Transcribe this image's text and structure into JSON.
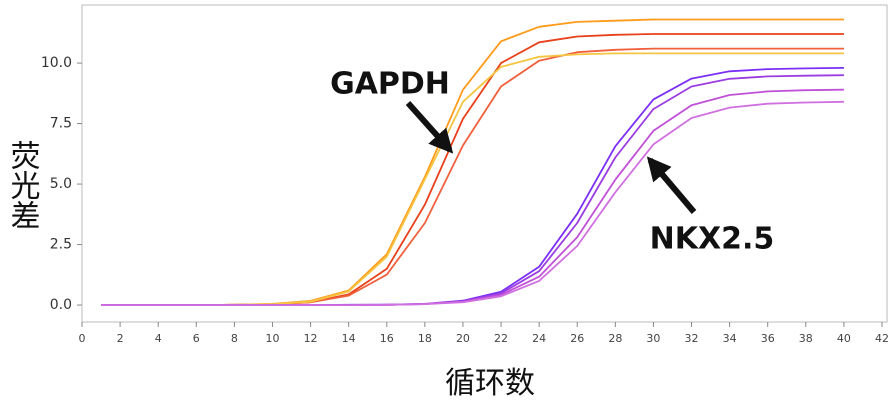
{
  "chart_data": {
    "type": "line",
    "x": [
      1,
      2,
      4,
      6,
      8,
      10,
      12,
      14,
      16,
      18,
      20,
      22,
      24,
      26,
      28,
      30,
      32,
      34,
      36,
      38,
      40
    ],
    "series": [
      {
        "color": "#ff9a1a",
        "values": [
          0,
          0,
          0,
          0,
          0.01,
          0.05,
          0.17,
          0.6,
          2.1,
          5.3,
          8.9,
          10.9,
          11.5,
          11.7,
          11.75,
          11.8,
          11.8,
          11.8,
          11.8,
          11.8,
          11.8
        ]
      },
      {
        "color": "#e8401a",
        "values": [
          0,
          0,
          0,
          0,
          0.01,
          0.03,
          0.12,
          0.44,
          1.5,
          4.15,
          7.7,
          10.0,
          10.86,
          11.1,
          11.17,
          11.2,
          11.2,
          11.2,
          11.2,
          11.2,
          11.2
        ]
      },
      {
        "color": "#f0603c",
        "values": [
          0,
          0,
          0,
          0,
          0.01,
          0.03,
          0.12,
          0.39,
          1.26,
          3.39,
          6.6,
          9.03,
          10.1,
          10.45,
          10.55,
          10.6,
          10.6,
          10.6,
          10.6,
          10.6,
          10.6
        ]
      },
      {
        "color": "#f5c542",
        "values": [
          0,
          0,
          0,
          0,
          0.01,
          0.04,
          0.14,
          0.56,
          2.0,
          5.2,
          8.4,
          9.84,
          10.26,
          10.36,
          10.4,
          10.4,
          10.4,
          10.4,
          10.4,
          10.4,
          10.4
        ]
      },
      {
        "color": "#7b2ff7",
        "values": [
          0,
          0,
          0,
          0,
          0,
          0,
          0,
          0.01,
          0.02,
          0.05,
          0.18,
          0.55,
          1.58,
          3.77,
          6.56,
          8.5,
          9.36,
          9.66,
          9.75,
          9.78,
          9.8
        ]
      },
      {
        "color": "#9b3de0",
        "values": [
          0,
          0,
          0,
          0,
          0,
          0,
          0,
          0,
          0.01,
          0.04,
          0.15,
          0.48,
          1.4,
          3.39,
          6.1,
          8.1,
          9.03,
          9.35,
          9.45,
          9.48,
          9.5
        ]
      },
      {
        "color": "#c050d8",
        "values": [
          0,
          0,
          0,
          0,
          0,
          0,
          0,
          0,
          0.01,
          0.05,
          0.14,
          0.42,
          1.17,
          2.8,
          5.18,
          7.2,
          8.26,
          8.68,
          8.83,
          8.88,
          8.9
        ]
      },
      {
        "color": "#d070e0",
        "values": [
          0,
          0,
          0,
          0,
          0,
          0,
          0,
          0,
          0.01,
          0.04,
          0.12,
          0.36,
          1.0,
          2.44,
          4.66,
          6.64,
          7.73,
          8.16,
          8.32,
          8.37,
          8.4
        ]
      }
    ],
    "xlabel": "循环数",
    "ylabel": "荧光差",
    "annotations": [
      "GAPDH",
      "NKX2.5"
    ],
    "xlim": [
      0,
      42
    ],
    "xticks": [
      0,
      2,
      4,
      6,
      8,
      10,
      12,
      14,
      16,
      18,
      20,
      22,
      24,
      26,
      28,
      30,
      32,
      34,
      36,
      38,
      40,
      42
    ],
    "ylim": [
      -0.7,
      12.4
    ],
    "yticks": [
      {
        "value": 0,
        "label": "0.0"
      },
      {
        "value": 2.5,
        "label": "2.5"
      },
      {
        "value": 5,
        "label": "5.0"
      },
      {
        "value": 7.5,
        "label": "7.5"
      },
      {
        "value": 10,
        "label": "10.0"
      }
    ],
    "grid": false
  }
}
